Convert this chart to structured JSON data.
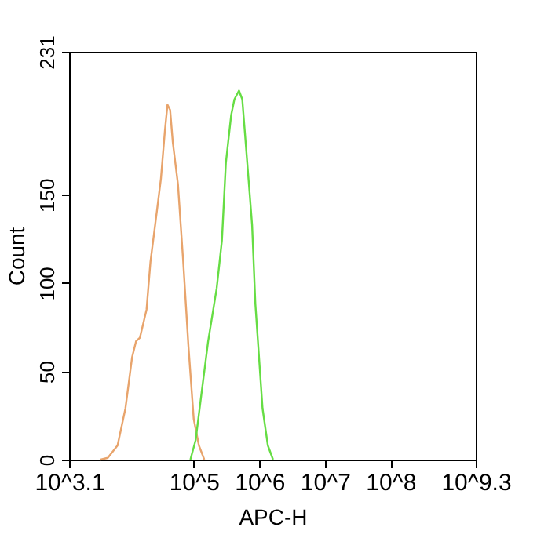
{
  "chart_data": {
    "type": "line",
    "xlabel": "APC-H",
    "ylabel": "Count",
    "log": "x",
    "xlim": [
      1258.9,
      1995262315
    ],
    "ylim": [
      0,
      231
    ],
    "xticks": [
      {
        "value": 1258.9,
        "label": "10^3.1"
      },
      {
        "value": 100000,
        "label": "10^5"
      },
      {
        "value": 1000000,
        "label": "10^6"
      },
      {
        "value": 10000000,
        "label": "10^7"
      },
      {
        "value": 100000000,
        "label": "10^8"
      },
      {
        "value": 1995262315,
        "label": "10^9.3"
      }
    ],
    "yticks": [
      0,
      50,
      100,
      150,
      231
    ],
    "grid": false,
    "marker": "none",
    "line_style": "solid",
    "series": [
      {
        "color": "#e8a46c",
        "x": [
          3800,
          4900,
          6900,
          9100,
          11500,
          13200,
          15100,
          19100,
          21900,
          27500,
          31600,
          36300,
          39800,
          43700,
          47900,
          57500,
          69200,
          83200,
          100000,
          120000,
          145000
        ],
        "values": [
          0,
          1,
          8,
          29,
          58,
          67,
          69,
          85,
          112,
          141,
          159,
          186,
          201,
          198,
          180,
          156,
          112,
          64,
          23,
          8,
          0
        ]
      },
      {
        "color": "#66dd44",
        "x": [
          89000,
          107000,
          132000,
          166000,
          224000,
          269000,
          309000,
          372000,
          417000,
          490000,
          550000,
          646000,
          776000,
          871000,
          1120000,
          1350000,
          1620000
        ],
        "values": [
          0,
          11,
          38,
          67,
          97,
          124,
          168,
          195,
          204,
          209,
          204,
          171,
          133,
          88,
          29,
          8,
          0
        ]
      }
    ]
  }
}
